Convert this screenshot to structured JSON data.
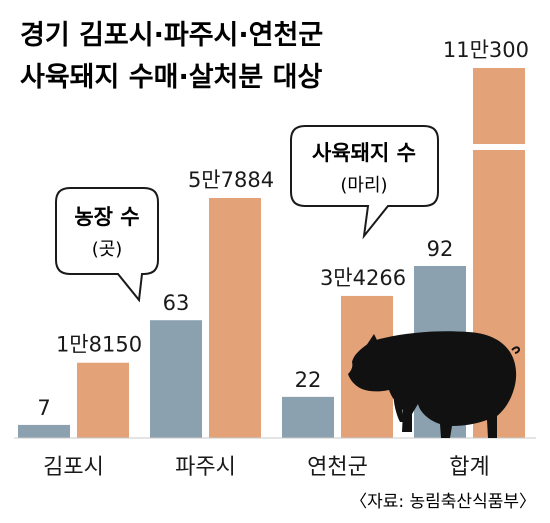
{
  "title_lines": [
    "경기 김포시·파주시·연천군",
    "사육돼지 수매·살처분 대상"
  ],
  "source": "〈자료: 농림축산식품부〉",
  "colors": {
    "farms": "#8ba1b0",
    "pigs": "#e3a277",
    "text": "#1a1a1a",
    "pig_icon": "#111111"
  },
  "icons": [
    "pig-silhouette-icon"
  ],
  "legend": {
    "farms": {
      "title": "농장 수",
      "unit": "(곳)"
    },
    "pigs": {
      "title": "사육돼지 수",
      "unit": "(마리)"
    }
  },
  "chart_data": {
    "type": "bar",
    "categories": [
      "김포시",
      "파주시",
      "연천군",
      "합계"
    ],
    "series": [
      {
        "name": "농장 수 (곳)",
        "values": [
          7,
          63,
          22,
          92
        ],
        "labels": [
          "7",
          "63",
          "22",
          "92"
        ]
      },
      {
        "name": "사육돼지 수 (마리)",
        "values": [
          18150,
          57884,
          34266,
          110300
        ],
        "labels": [
          "1만8150",
          "5만7884",
          "3만4266",
          "11만300"
        ]
      }
    ],
    "axis_break_on": "합계 사육돼지 수",
    "grid": false,
    "legend_placement": "callout bubbles"
  }
}
